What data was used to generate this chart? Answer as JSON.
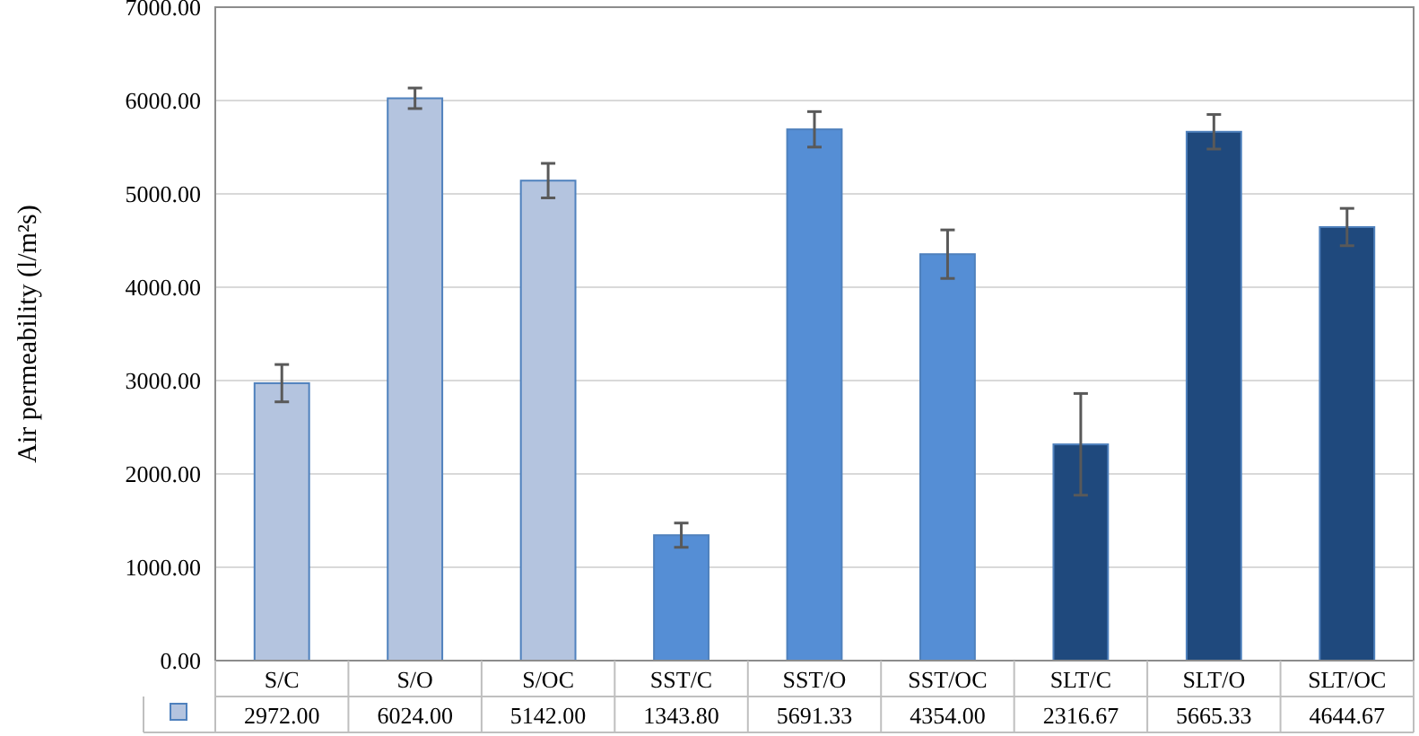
{
  "chart_data": {
    "type": "bar",
    "ylabel": "Air permeability (l/m²s)",
    "categories": [
      "S/C",
      "S/O",
      "S/OC",
      "SST/C",
      "SST/O",
      "SST/OC",
      "SLT/C",
      "SLT/O",
      "SLT/OC"
    ],
    "values": [
      2972.0,
      6024.0,
      5142.0,
      1343.8,
      5691.33,
      4354.0,
      2316.67,
      5665.33,
      4644.67
    ],
    "colors": [
      "#b4c4df",
      "#b4c4df",
      "#b4c4df",
      "#558ed5",
      "#558ed5",
      "#558ed5",
      "#1f497d",
      "#1f497d",
      "#1f497d"
    ],
    "errors": [
      200,
      110,
      185,
      130,
      190,
      260,
      545,
      185,
      200
    ],
    "ylim": [
      0,
      7000
    ],
    "yticks": [
      {
        "value": 0,
        "label": "0.00"
      },
      {
        "value": 1000,
        "label": "1000.00"
      },
      {
        "value": 2000,
        "label": "2000.00"
      },
      {
        "value": 3000,
        "label": "3000.00"
      },
      {
        "value": 4000,
        "label": "4000.00"
      },
      {
        "value": 5000,
        "label": "5000.00"
      },
      {
        "value": 6000,
        "label": "6000.00"
      },
      {
        "value": 7000,
        "label": "7000.00"
      }
    ],
    "value_labels": [
      "2972.00",
      "6024.00",
      "5142.00",
      "1343.80",
      "5691.33",
      "4354.00",
      "2316.67",
      "5665.33",
      "4644.67"
    ],
    "grid": "y"
  }
}
